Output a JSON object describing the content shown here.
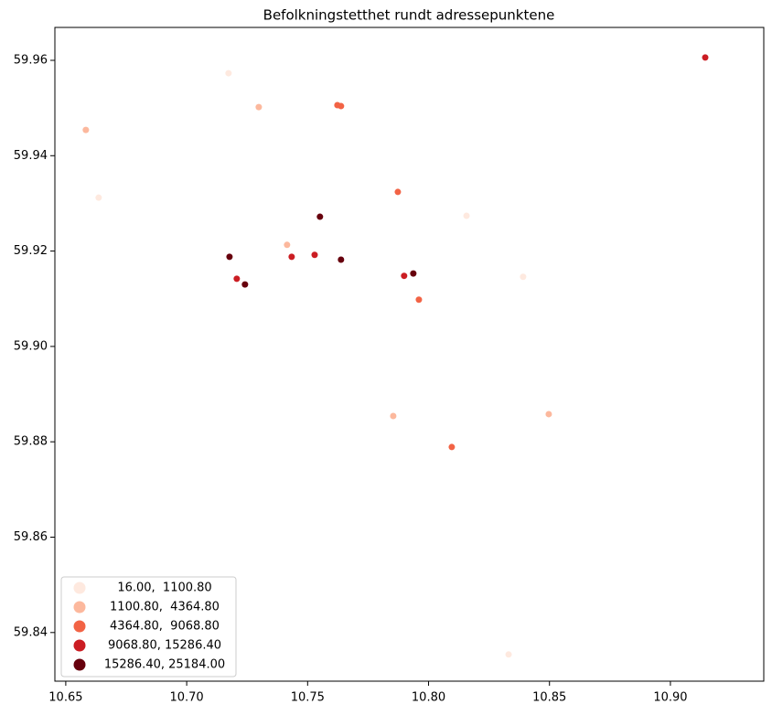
{
  "chart_data": {
    "type": "scatter",
    "title": "Befolkningstetthet rundt adressepunktene",
    "xlim": [
      10.6455,
      10.9386
    ],
    "ylim": [
      59.8298,
      59.9669
    ],
    "xticks": [
      10.65,
      {
        "value": 10.7,
        "label": "10.70"
      },
      10.75,
      {
        "value": 10.8,
        "label": "10.80"
      },
      10.85,
      {
        "value": 10.9,
        "label": "10.90"
      }
    ],
    "yticks": [
      59.84,
      59.86,
      59.88,
      {
        "value": 59.9,
        "label": "59.90"
      },
      59.92,
      59.94,
      59.96
    ],
    "legend": "lower left",
    "grid": false,
    "series": [
      {
        "name": "16.00,  1100.80",
        "color": "#fee9df",
        "x": [
          10.7173,
          10.6636,
          10.8157,
          10.8391,
          10.8331
        ],
        "y": [
          59.9573,
          59.9312,
          59.9274,
          59.9146,
          59.8354
        ]
      },
      {
        "name": "1100.80,  4364.80",
        "color": "#fcb89d",
        "x": [
          10.7298,
          10.6583,
          10.7415,
          10.7854,
          10.8497
        ],
        "y": [
          59.9502,
          59.9454,
          59.9213,
          59.8854,
          59.8858
        ]
      },
      {
        "name": "4364.80,  9068.80",
        "color": "#f26345",
        "x": [
          10.7623,
          10.7638,
          10.7873,
          10.796,
          10.8096
        ],
        "y": [
          59.9506,
          59.9504,
          59.9324,
          59.9098,
          59.8789
        ]
      },
      {
        "name": "9068.80, 15286.40",
        "color": "#cb1d23",
        "x": [
          10.9144,
          10.7434,
          10.7529,
          10.7207,
          10.7899
        ],
        "y": [
          59.9606,
          59.9188,
          59.9192,
          59.9142,
          59.9148
        ]
      },
      {
        "name": "15286.40, 25184.00",
        "color": "#67000d",
        "x": [
          10.7551,
          10.7177,
          10.7638,
          10.7241,
          10.7937
        ],
        "y": [
          59.9272,
          59.9188,
          59.9182,
          59.913,
          59.9153
        ]
      }
    ]
  }
}
